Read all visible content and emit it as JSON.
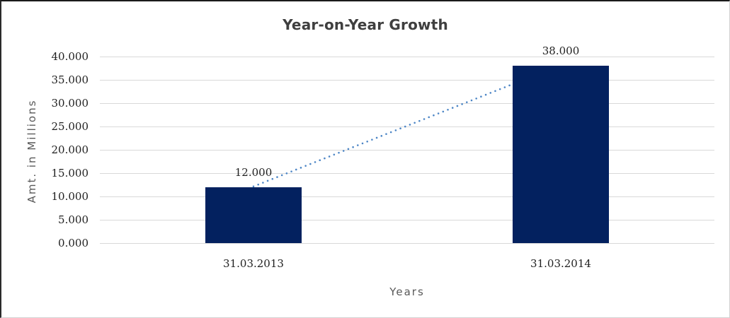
{
  "chart_data": {
    "type": "bar",
    "title": "Year-on-Year Growth",
    "xlabel": "Years",
    "ylabel": "Amt. in Millions",
    "categories": [
      "31.03.2013",
      "31.03.2014"
    ],
    "values": [
      12,
      38
    ],
    "data_labels": [
      "12.000",
      "38.000"
    ],
    "y_ticks": [
      "0.000",
      "5.000",
      "10.000",
      "15.000",
      "20.000",
      "25.000",
      "30.000",
      "35.000",
      "40.000"
    ],
    "ylim": [
      0,
      40
    ],
    "grid": "horizontal",
    "legend": "none",
    "trendline": {
      "style": "dotted",
      "from_value": 12,
      "to_value": 38
    },
    "colors": {
      "bar": "#03215f",
      "trendline": "#4d86c6",
      "gridline": "#d9d9d9",
      "title_text": "#3f3f3f",
      "tick_text": "#1f1f1f",
      "axis_title_text": "#595959"
    }
  }
}
